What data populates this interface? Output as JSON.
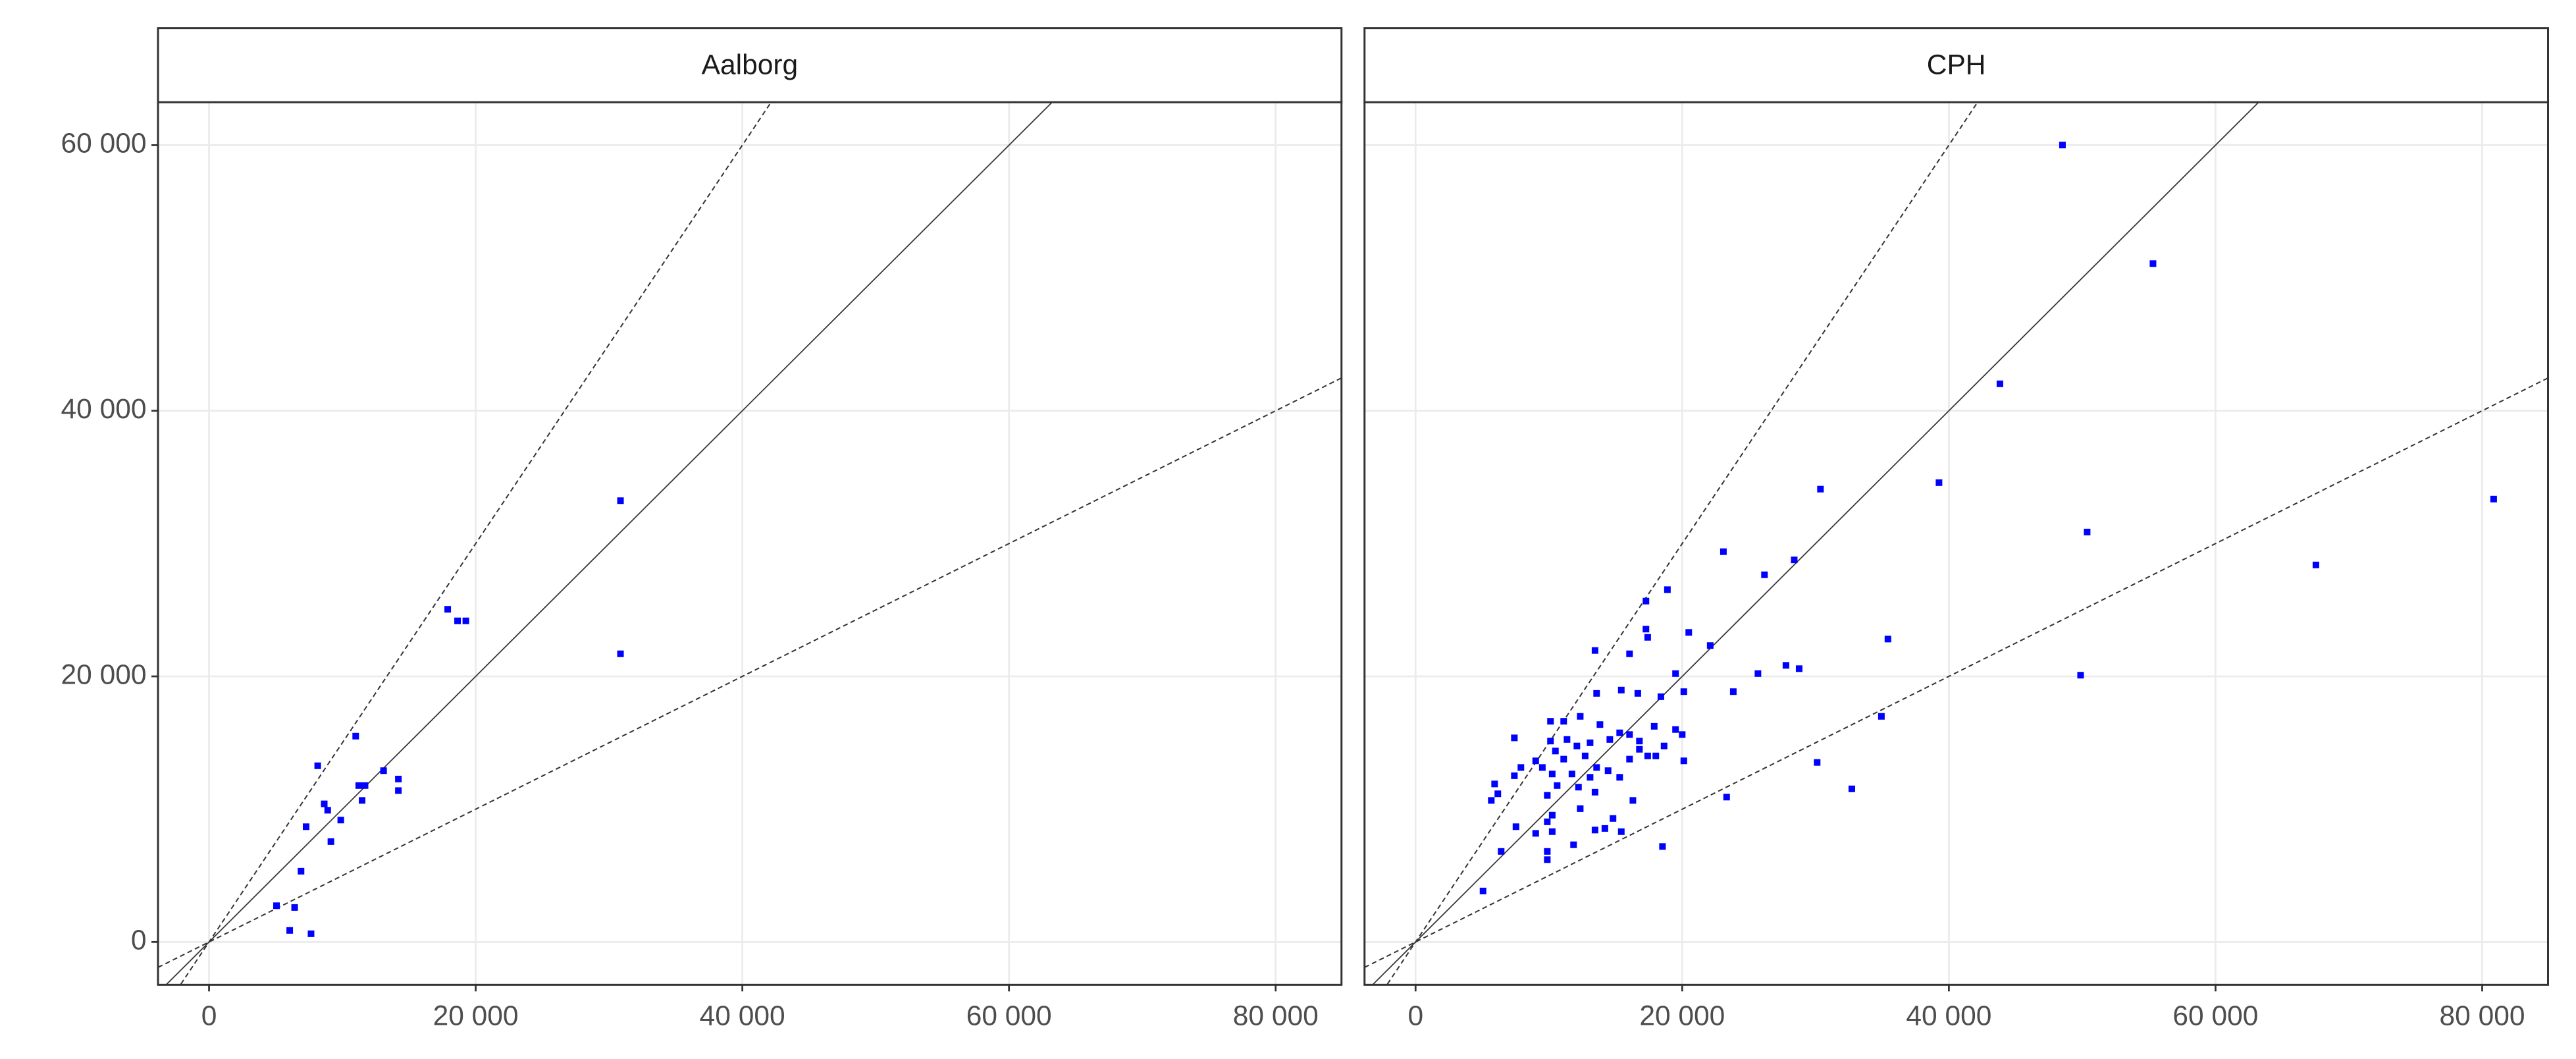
{
  "chart_data": [
    {
      "type": "scatter",
      "title": "Aalborg",
      "color": "#0000ff",
      "grid": true,
      "xlim": [
        -3827,
        84938
      ],
      "ylim": [
        -3224,
        63236
      ],
      "xticks": [
        0,
        {
          "value": 20000,
          "label": "20 000"
        },
        {
          "value": 40000,
          "label": "40 000"
        },
        {
          "value": 60000,
          "label": "60 000"
        },
        {
          "value": 80000,
          "label": "80 000"
        }
      ],
      "yticks": [
        0,
        {
          "value": 20000,
          "label": "20 000"
        },
        {
          "value": 40000,
          "label": "40 000"
        },
        {
          "value": 60000,
          "label": "60 000"
        }
      ],
      "reference_lines": [
        {
          "slope": 1,
          "style": "solid"
        },
        {
          "slope": 1.5,
          "style": "dashed"
        },
        {
          "slope": 0.5,
          "style": "dashed"
        }
      ],
      "x": [
        30860,
        30860,
        17900,
        18640,
        19260,
        11000,
        8150,
        13090,
        11230,
        11700,
        14200,
        14200,
        11480,
        8640,
        8900,
        9880,
        7280,
        9140,
        6900,
        5060,
        6420,
        6050,
        7650
      ],
      "y": [
        33230,
        21700,
        25050,
        24180,
        24180,
        15500,
        13270,
        12900,
        11780,
        11780,
        12270,
        11400,
        10660,
        10400,
        9920,
        9180,
        8680,
        7560,
        5330,
        2730,
        2600,
        870,
        620
      ]
    },
    {
      "type": "scatter",
      "title": "CPH",
      "color": "#0000ff",
      "grid": true,
      "xlim": [
        -3827,
        84938
      ],
      "ylim": [
        -3224,
        63236
      ],
      "xticks": [
        0,
        {
          "value": 20000,
          "label": "20 000"
        },
        {
          "value": 40000,
          "label": "40 000"
        },
        {
          "value": 60000,
          "label": "60 000"
        },
        {
          "value": 80000,
          "label": "80 000"
        }
      ],
      "yticks": [
        0,
        20000,
        40000,
        60000
      ],
      "reference_lines": [
        {
          "slope": 1,
          "style": "solid"
        },
        {
          "slope": 1.5,
          "style": "dashed"
        },
        {
          "slope": 0.5,
          "style": "dashed"
        }
      ],
      "x": [
        48520,
        55310,
        43830,
        39260,
        30370,
        50370,
        80860,
        67530,
        23090,
        28400,
        26170,
        18890,
        17280,
        17280,
        17410,
        20490,
        35430,
        22100,
        13460,
        16050,
        27780,
        28770,
        25680,
        19500,
        49880,
        20120,
        23830,
        15430,
        16670,
        13580,
        18400,
        34940,
        10120,
        11110,
        12350,
        13830,
        17900,
        19500,
        20000,
        7410,
        15310,
        16050,
        10120,
        11360,
        13090,
        14570,
        16790,
        10490,
        12100,
        16790,
        18640,
        9010,
        11110,
        12720,
        16050,
        17410,
        18020,
        20120,
        30120,
        7900,
        9510,
        13580,
        14440,
        11730,
        10250,
        7410,
        5930,
        13090,
        15310,
        10620,
        12220,
        32720,
        9880,
        6170,
        13460,
        16300,
        23330,
        5680,
        12350,
        10250,
        9880,
        14810,
        7530,
        10250,
        9010,
        13460,
        14200,
        15430,
        11850,
        18520,
        9880,
        6420,
        9880,
        5060
      ],
      "y": [
        60010,
        51080,
        42030,
        34590,
        34100,
        30870,
        33350,
        28390,
        29390,
        28770,
        27650,
        26530,
        25670,
        23560,
        22940,
        23310,
        22810,
        22320,
        21950,
        21700,
        20830,
        20580,
        20210,
        20210,
        20090,
        18850,
        18850,
        18970,
        18720,
        18720,
        18470,
        16990,
        16620,
        16620,
        16990,
        16370,
        16240,
        16000,
        15620,
        15370,
        15750,
        15620,
        15130,
        15250,
        15000,
        15250,
        15130,
        14380,
        14760,
        14510,
        14760,
        13640,
        13770,
        14010,
        13770,
        14010,
        14010,
        13640,
        13520,
        13140,
        13140,
        13140,
        12900,
        12650,
        12650,
        12520,
        11900,
        12400,
        12400,
        11780,
        11660,
        11530,
        11040,
        11160,
        11280,
        10660,
        10910,
        10660,
        10040,
        9550,
        9050,
        9300,
        8680,
        8310,
        8180,
        8430,
        8550,
        8310,
        7320,
        7190,
        6820,
        6820,
        6200,
        3840
      ]
    }
  ]
}
